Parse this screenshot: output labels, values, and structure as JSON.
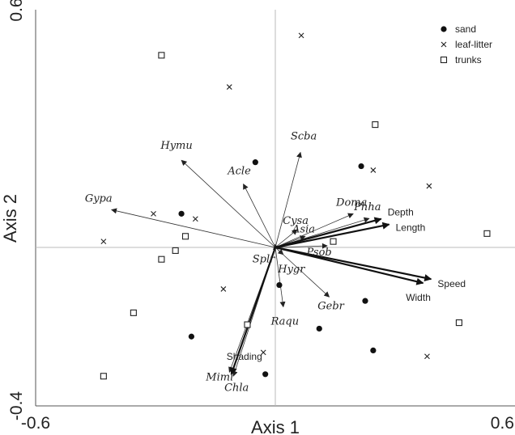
{
  "chart_data": {
    "type": "scatter",
    "title": "",
    "xlabel": "Axis 1",
    "ylabel": "Axis 2",
    "xlim": [
      -0.6,
      0.6
    ],
    "ylim": [
      -0.4,
      0.6
    ],
    "x_ticks": [
      {
        "value": -0.6,
        "label": "-0.6"
      },
      {
        "value": 0.6,
        "label": "0.6"
      }
    ],
    "y_ticks": [
      {
        "value": -0.4,
        "label": "-0.4"
      },
      {
        "value": 0.6,
        "label": "0.6"
      }
    ],
    "grid": false,
    "legend": {
      "position": "top-right",
      "entries": [
        {
          "label": "sand",
          "marker": "circle"
        },
        {
          "label": "leaf-litter",
          "marker": "cross"
        },
        {
          "label": "trunks",
          "marker": "square"
        }
      ]
    },
    "series": [
      {
        "name": "sand",
        "marker": "circle",
        "points": [
          [
            -0.05,
            0.215
          ],
          [
            0.215,
            0.205
          ],
          [
            -0.235,
            0.085
          ],
          [
            0.01,
            -0.095
          ],
          [
            0.11,
            -0.205
          ],
          [
            0.225,
            -0.135
          ],
          [
            -0.21,
            -0.225
          ],
          [
            0.245,
            -0.26
          ],
          [
            -0.025,
            -0.32
          ]
        ]
      },
      {
        "name": "leaf-litter",
        "marker": "cross",
        "points": [
          [
            0.065,
            0.535
          ],
          [
            -0.115,
            0.405
          ],
          [
            0.245,
            0.195
          ],
          [
            0.385,
            0.155
          ],
          [
            -0.305,
            0.085
          ],
          [
            -0.2,
            0.072
          ],
          [
            -0.43,
            0.015
          ],
          [
            -0.13,
            -0.105
          ],
          [
            -0.03,
            -0.265
          ],
          [
            0.38,
            -0.275
          ]
        ]
      },
      {
        "name": "trunks",
        "marker": "square",
        "points": [
          [
            -0.285,
            0.485
          ],
          [
            0.25,
            0.31
          ],
          [
            0.53,
            0.035
          ],
          [
            -0.225,
            0.028
          ],
          [
            0.145,
            0.015
          ],
          [
            -0.25,
            -0.008
          ],
          [
            -0.285,
            -0.03
          ],
          [
            -0.355,
            -0.165
          ],
          [
            -0.07,
            -0.195
          ],
          [
            0.46,
            -0.19
          ],
          [
            -0.43,
            -0.325
          ]
        ]
      }
    ],
    "vectors": [
      {
        "label": "Hymu",
        "style": "thin",
        "x": -0.235,
        "y": 0.22
      },
      {
        "label": "Scba",
        "style": "thin",
        "x": 0.063,
        "y": 0.24
      },
      {
        "label": "Acle",
        "style": "thin",
        "x": -0.08,
        "y": 0.16
      },
      {
        "label": "Gypa",
        "style": "thin",
        "x": -0.41,
        "y": 0.095
      },
      {
        "label": "Doma",
        "style": "thin",
        "x": 0.195,
        "y": 0.085
      },
      {
        "label": "Phha",
        "style": "thin",
        "x": 0.235,
        "y": 0.073
      },
      {
        "label": "Cysa",
        "style": "thin",
        "x": 0.055,
        "y": 0.045
      },
      {
        "label": "Asia",
        "style": "thin",
        "x": 0.075,
        "y": 0.028
      },
      {
        "label": "Psob",
        "style": "thin",
        "x": 0.13,
        "y": 0.004
      },
      {
        "label": "Splr",
        "style": "thin",
        "x": -0.005,
        "y": -0.005
      },
      {
        "label": "Hygr",
        "style": "thin",
        "x": 0.02,
        "y": -0.018
      },
      {
        "label": "Gebr",
        "style": "thin",
        "x": 0.135,
        "y": -0.125
      },
      {
        "label": "Raqu",
        "style": "thin",
        "x": 0.02,
        "y": -0.15
      },
      {
        "label": "Mimi",
        "style": "thin",
        "x": -0.115,
        "y": -0.315
      },
      {
        "label": "Chla",
        "style": "thin",
        "x": -0.105,
        "y": -0.325
      },
      {
        "label": "Depth",
        "style": "bold",
        "x": 0.265,
        "y": 0.072
      },
      {
        "label": "Length",
        "style": "bold",
        "x": 0.285,
        "y": 0.058
      },
      {
        "label": "Width",
        "style": "bold",
        "x": 0.37,
        "y": -0.09
      },
      {
        "label": "Speed",
        "style": "bold",
        "x": 0.39,
        "y": -0.08
      },
      {
        "label": "Shading",
        "style": "bold",
        "x": -0.11,
        "y": -0.32
      }
    ]
  }
}
